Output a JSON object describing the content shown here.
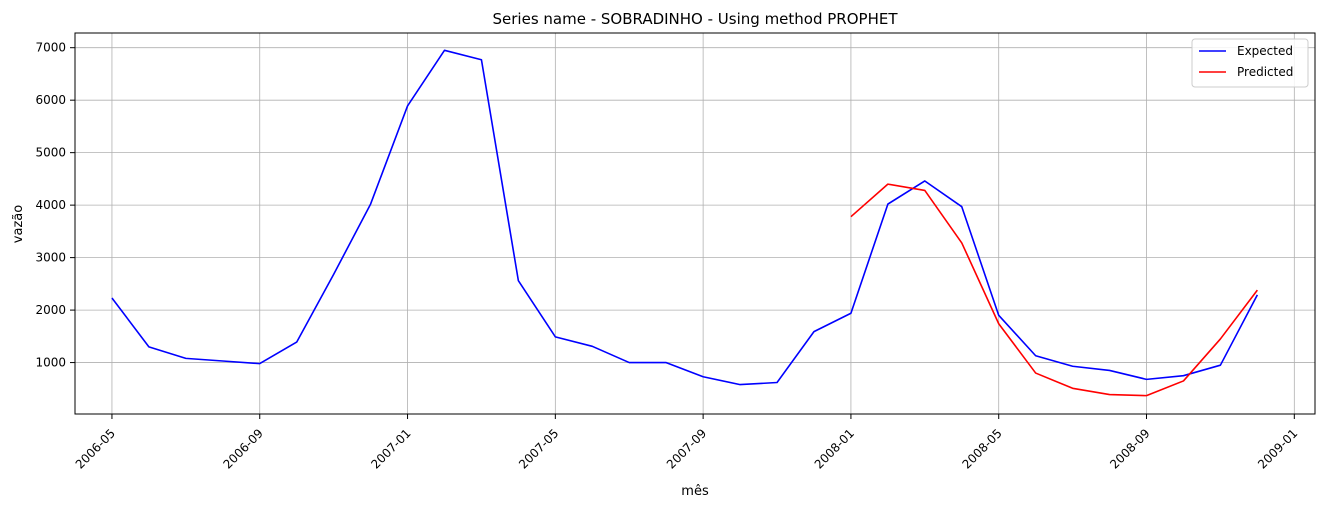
{
  "chart_data": {
    "type": "line",
    "title": "Series name - SOBRADINHO - Using method PROPHET",
    "xlabel": "mês",
    "ylabel": "vazão",
    "x_ticks": [
      "2006-05",
      "2006-09",
      "2007-01",
      "2007-05",
      "2007-09",
      "2008-01",
      "2008-05",
      "2008-09",
      "2009-01"
    ],
    "y_ticks": [
      1000,
      2000,
      3000,
      4000,
      5000,
      6000,
      7000
    ],
    "ylim": [
      20,
      7280
    ],
    "xlim": [
      "2006-04",
      "2009-01"
    ],
    "grid": true,
    "legend_position": "top-right",
    "series": [
      {
        "name": "Expected",
        "color": "#0000ff",
        "points": [
          [
            "2006-05",
            2230
          ],
          [
            "2006-06",
            1300
          ],
          [
            "2006-07",
            1080
          ],
          [
            "2006-08",
            1030
          ],
          [
            "2006-09",
            980
          ],
          [
            "2006-10",
            1390
          ],
          [
            "2006-11",
            2680
          ],
          [
            "2006-12",
            4020
          ],
          [
            "2007-01",
            5890
          ],
          [
            "2007-02",
            6950
          ],
          [
            "2007-03",
            6770
          ],
          [
            "2007-04",
            2560
          ],
          [
            "2007-05",
            1490
          ],
          [
            "2007-06",
            1310
          ],
          [
            "2007-07",
            1000
          ],
          [
            "2007-08",
            1000
          ],
          [
            "2007-09",
            730
          ],
          [
            "2007-10",
            580
          ],
          [
            "2007-11",
            620
          ],
          [
            "2007-12",
            1590
          ],
          [
            "2008-01",
            1940
          ],
          [
            "2008-02",
            4020
          ],
          [
            "2008-03",
            4460
          ],
          [
            "2008-04",
            3970
          ],
          [
            "2008-05",
            1900
          ],
          [
            "2008-06",
            1130
          ],
          [
            "2008-07",
            930
          ],
          [
            "2008-08",
            850
          ],
          [
            "2008-09",
            680
          ],
          [
            "2008-10",
            750
          ],
          [
            "2008-11",
            950
          ],
          [
            "2008-12",
            2290
          ]
        ]
      },
      {
        "name": "Predicted",
        "color": "#ff0000",
        "points": [
          [
            "2008-01",
            3780
          ],
          [
            "2008-02",
            4400
          ],
          [
            "2008-03",
            4280
          ],
          [
            "2008-04",
            3280
          ],
          [
            "2008-05",
            1740
          ],
          [
            "2008-06",
            800
          ],
          [
            "2008-07",
            510
          ],
          [
            "2008-08",
            390
          ],
          [
            "2008-09",
            370
          ],
          [
            "2008-10",
            650
          ],
          [
            "2008-11",
            1450
          ],
          [
            "2008-12",
            2380
          ]
        ]
      }
    ]
  }
}
